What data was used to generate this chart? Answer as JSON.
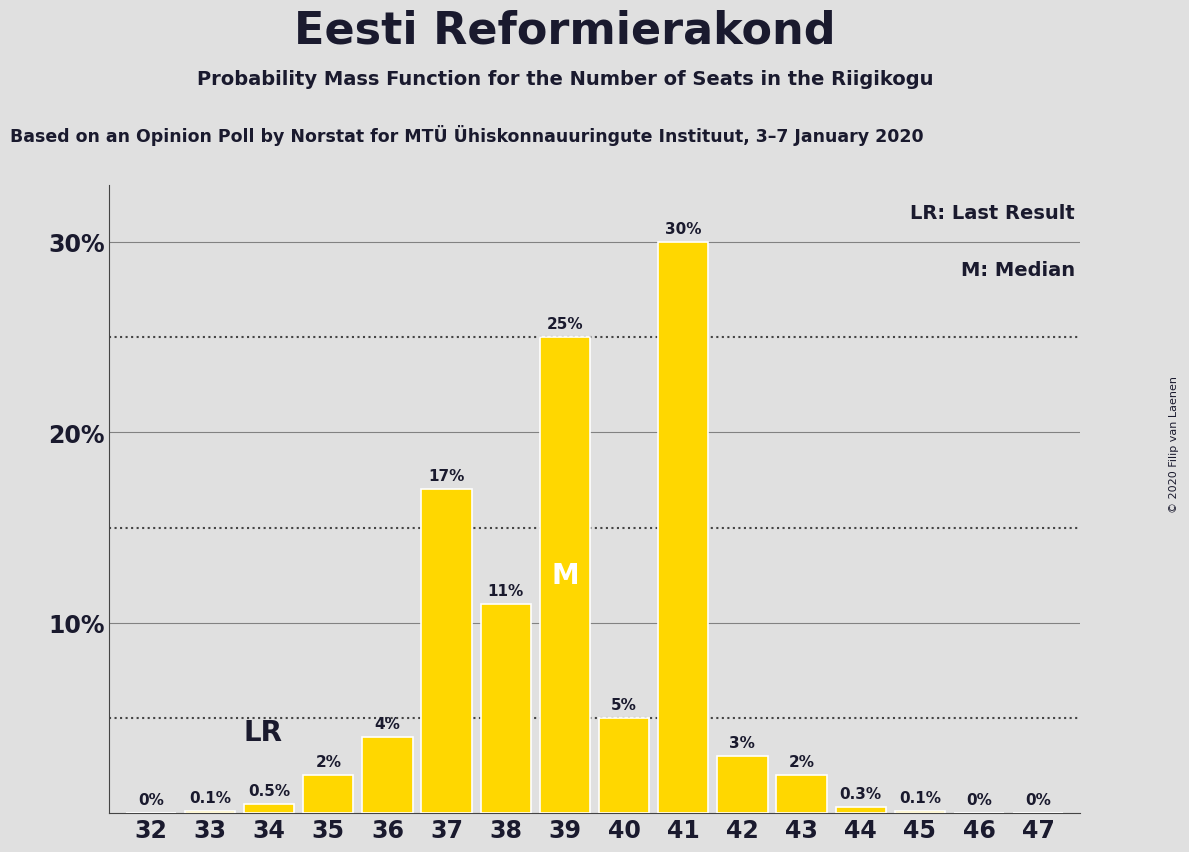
{
  "title": "Eesti Reformierakond",
  "subtitle": "Probability Mass Function for the Number of Seats in the Riigikogu",
  "source_line": "Based on an Opinion Poll by Norstat for MTÜ Ühiskonnauuringute Instituut, 3–7 January 2020",
  "copyright": "© 2020 Filip van Laenen",
  "seats": [
    32,
    33,
    34,
    35,
    36,
    37,
    38,
    39,
    40,
    41,
    42,
    43,
    44,
    45,
    46,
    47
  ],
  "probabilities": [
    0.0,
    0.1,
    0.5,
    2.0,
    4.0,
    17.0,
    11.0,
    25.0,
    5.0,
    30.0,
    3.0,
    2.0,
    0.3,
    0.1,
    0.0,
    0.0
  ],
  "bar_color": "#FFD700",
  "bar_edge_color": "#FFFFFF",
  "background_color": "#E0E0E0",
  "text_color": "#1a1a2e",
  "lr_seat": 34,
  "median_seat": 39,
  "ylim": [
    0,
    33
  ],
  "yticks": [
    10,
    20,
    30
  ],
  "grid_levels": [
    5,
    15,
    25
  ],
  "lr_label": "LR",
  "median_label": "M",
  "lr_legend": "LR: Last Result",
  "median_legend": "M: Median",
  "bar_labels": [
    "0%",
    "0.1%",
    "0.5%",
    "2%",
    "4%",
    "17%",
    "11%",
    "25%",
    "5%",
    "30%",
    "3%",
    "2%",
    "0.3%",
    "0.1%",
    "0%",
    "0%"
  ]
}
